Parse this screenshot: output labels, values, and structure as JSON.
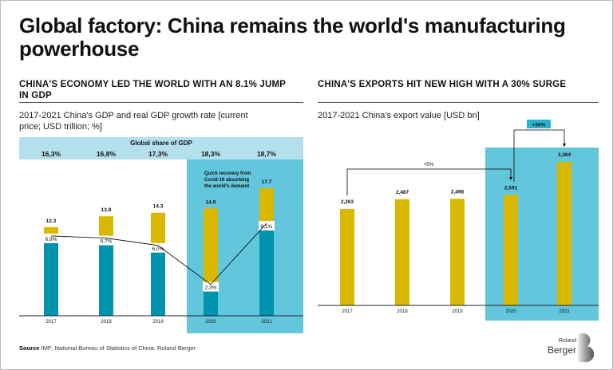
{
  "title": "Global factory: China remains the world's manufacturing powerhouse",
  "left": {
    "heading": "CHINA'S ECONOMY LED THE WORLD WITH AN 8.1% JUMP IN GDP",
    "subtitle": "2017-2021 China's GDP and real GDP growth rate [current price; USD trillion; %]"
  },
  "right": {
    "heading": "CHINA'S EXPORTS HIT NEW HIGH WITH A 30% SURGE",
    "subtitle": "2017-2021 China's export value [USD bn]"
  },
  "source_label": "Source",
  "source_text": "IMF; National Bureau of Statistics of China; Roland Berger",
  "logo": "Roland Berger",
  "colors": {
    "gdp": "#d9b800",
    "growth": "#0093ad",
    "highlight": "#62c6dc",
    "band": "#b3e0ec",
    "line": "#000000"
  },
  "chart_data": [
    {
      "type": "bar",
      "categories": [
        "2017",
        "2018",
        "2019",
        "2020",
        "2021"
      ],
      "series": [
        {
          "values": [
            12.3,
            13.8,
            14.3,
            14.9,
            17.7
          ]
        },
        {
          "values": [
            6.9,
            6.7,
            6.0,
            2.3,
            8.1
          ]
        }
      ],
      "value_labels": [
        "12.3",
        "13.8",
        "14.3",
        "14.9",
        "17.7"
      ],
      "growth_labels": [
        "6,9%",
        "6,7%",
        "6,0%",
        "2,3%",
        "8,1%"
      ],
      "band_title": "Global share of GDP",
      "global_share": [
        "16,3%",
        "16,8%",
        "17,3%",
        "18,3%",
        "18,7%"
      ],
      "annotation": "Quick recovery from Covid-19 absorbing the world's demand",
      "highlight": [
        "2020",
        "2021"
      ]
    },
    {
      "type": "bar",
      "categories": [
        "2017",
        "2018",
        "2019",
        "2020",
        "2021"
      ],
      "values": [
        2263,
        2487,
        2498,
        2591,
        3364
      ],
      "value_labels": [
        "2,263",
        "2,487",
        "2,498",
        "2,591",
        "3,364"
      ],
      "annotations": [
        "+5%",
        "+30%"
      ],
      "highlight": [
        "2020",
        "2021"
      ]
    }
  ]
}
